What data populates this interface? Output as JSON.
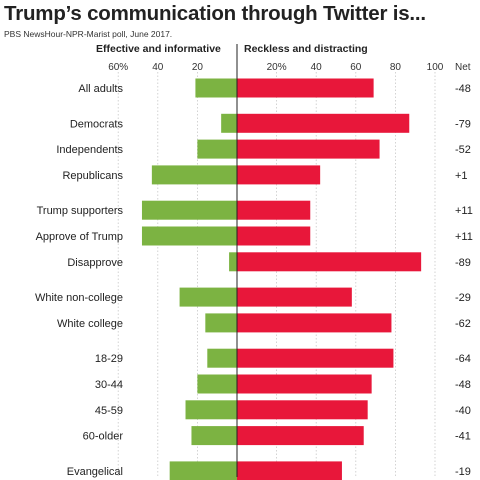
{
  "chart_data": {
    "type": "bar",
    "title": "Trump’s communication through Twitter is...",
    "subtitle": "PBS NewsHour-NPR-Marist poll, June 2017.",
    "left_label": "Effective and informative",
    "right_label": "Reckless and distracting",
    "net_label": "Net",
    "left_ticks": [
      "60%",
      "40",
      "20"
    ],
    "right_ticks": [
      "20%",
      "40",
      "60",
      "80",
      "100"
    ],
    "colors": {
      "effective": "#7cb342",
      "reckless": "#e8173a"
    },
    "categories": [
      "All adults",
      "Democrats",
      "Independents",
      "Republicans",
      "Trump supporters",
      "Approve of Trump",
      "Disapprove",
      "White non-college",
      "White college",
      "18-29",
      "30-44",
      "45-59",
      "60-older",
      "Evangelical"
    ],
    "groups": [
      [
        0
      ],
      [
        1,
        2,
        3
      ],
      [
        4,
        5,
        6
      ],
      [
        7,
        8
      ],
      [
        9,
        10,
        11,
        12
      ],
      [
        13
      ]
    ],
    "series": [
      {
        "name": "Effective and informative",
        "values": [
          21,
          8,
          20,
          43,
          48,
          48,
          4,
          29,
          16,
          15,
          20,
          26,
          23,
          34
        ]
      },
      {
        "name": "Reckless and distracting",
        "values": [
          69,
          87,
          72,
          42,
          37,
          37,
          93,
          58,
          78,
          79,
          68,
          66,
          64,
          53
        ]
      }
    ],
    "net": [
      "-48",
      "-79",
      "-52",
      "+1",
      "+11",
      "+11",
      "-89",
      "-29",
      "-62",
      "-64",
      "-48",
      "-40",
      "-41",
      "-19"
    ],
    "xlim": [
      -60,
      100
    ]
  }
}
